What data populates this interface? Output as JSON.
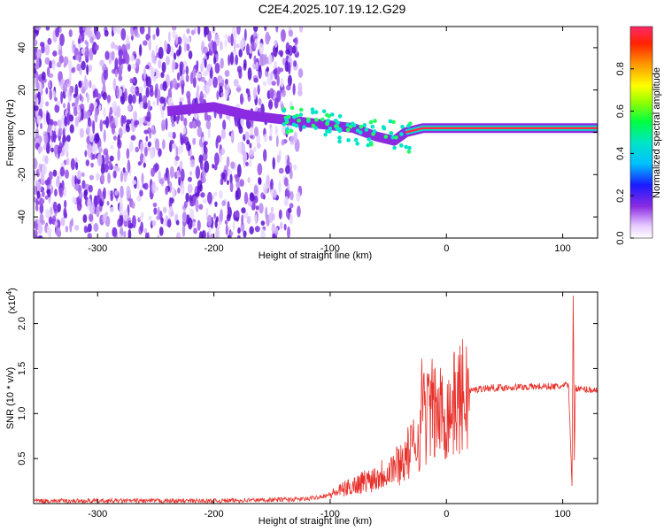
{
  "title": "C2E4.2025.107.19.12.G29",
  "colors": {
    "snr_line": "#e8302a",
    "heat_low": "#8a2be2",
    "heat_mid": "#00e5c8",
    "heat_high": "#ff2a4a"
  },
  "chart_data": [
    {
      "type": "heatmap",
      "xlabel": "Height of straight line (km)",
      "ylabel": "Frequency (Hz)",
      "colorbar_label": "Normalized spectral amplitude",
      "xlim": [
        -355,
        130
      ],
      "ylim": [
        -50,
        50
      ],
      "x_ticks": [
        -300,
        -200,
        -100,
        0,
        100
      ],
      "y_ticks": [
        40,
        20,
        0,
        -20,
        -40
      ],
      "colorbar_ticks": [
        0.0,
        0.2,
        0.4,
        0.6,
        0.8
      ],
      "colorbar_range": [
        0,
        1
      ],
      "ridge": [
        {
          "x": -240,
          "y": 10
        },
        {
          "x": -200,
          "y": 12
        },
        {
          "x": -170,
          "y": 8
        },
        {
          "x": -140,
          "y": 6
        },
        {
          "x": -110,
          "y": 4
        },
        {
          "x": -80,
          "y": 2
        },
        {
          "x": -60,
          "y": -2
        },
        {
          "x": -45,
          "y": -4
        },
        {
          "x": -35,
          "y": 0
        },
        {
          "x": -20,
          "y": 2
        },
        {
          "x": 0,
          "y": 2
        },
        {
          "x": 50,
          "y": 2
        },
        {
          "x": 100,
          "y": 2
        },
        {
          "x": 130,
          "y": 2
        }
      ]
    },
    {
      "type": "line",
      "xlabel": "Height of straight line (km)",
      "ylabel": "SNR (10 * v/v)",
      "y_multiplier_label": "(x10",
      "y_multiplier_exp": "4",
      "xlim": [
        -355,
        130
      ],
      "ylim": [
        0,
        23500
      ],
      "x_ticks": [
        -300,
        -200,
        -100,
        0,
        100
      ],
      "y_ticks": [
        0.5,
        1.0,
        1.5,
        2.0
      ],
      "series": [
        {
          "x": [
            -355,
            -200,
            -120,
            -100,
            -80,
            -60,
            -40,
            -30,
            -22,
            -20,
            -18,
            -15,
            -10,
            0,
            10,
            20,
            30,
            50,
            80,
            100,
            105,
            108,
            109,
            110,
            111,
            112,
            115,
            130
          ],
          "y": [
            300,
            300,
            500,
            1000,
            2000,
            3000,
            4500,
            6000,
            8000,
            15000,
            9000,
            11000,
            10000,
            10000,
            11500,
            12500,
            12800,
            12900,
            13000,
            13000,
            13200,
            2000,
            23500,
            5000,
            13000,
            12800,
            12700,
            12600
          ]
        }
      ]
    }
  ]
}
